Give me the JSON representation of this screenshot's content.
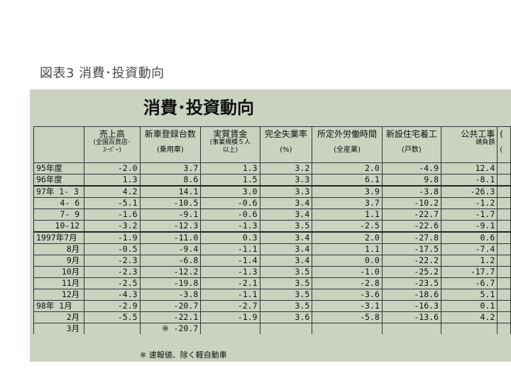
{
  "caption": "図表3 消費･投資動向",
  "title": "消費･投資動向",
  "headers": [
    {
      "name": "col-label",
      "main": "",
      "sub1": "",
      "sub2": ""
    },
    {
      "name": "col-sales",
      "main": "売上高",
      "sub1": "(全国百貨店･",
      "sub2": "ｽｰﾊﾟｰ)"
    },
    {
      "name": "col-newcar",
      "main": "新車登録台数",
      "sub1": "",
      "sub2": "(乗用車)"
    },
    {
      "name": "col-wage",
      "main": "実質賃金",
      "sub1": "(事業規模５人",
      "sub2": "以上)"
    },
    {
      "name": "col-unemp",
      "main": "完全失業率",
      "sub1": "",
      "sub2": "(%)"
    },
    {
      "name": "col-overtime",
      "main": "所定外労働時間",
      "sub1": "",
      "sub2": "(全産業)"
    },
    {
      "name": "col-housing",
      "main": "新設住宅着工",
      "sub1": "",
      "sub2": "(戸数)"
    },
    {
      "name": "col-public",
      "main": "公共工事",
      "sub1": "請負額",
      "sub2": ""
    },
    {
      "name": "col-extra",
      "main": "(",
      "sub1": "",
      "sub2": "("
    }
  ],
  "rows": [
    {
      "label": "95年度",
      "vals": [
        "-2.0",
        "3.7",
        "1.3",
        "3.2",
        "2.0",
        "-4.9",
        "12.4"
      ]
    },
    {
      "label": "96年度",
      "vals": [
        "1.3",
        "8.6",
        "1.5",
        "3.3",
        "6.1",
        "9.8",
        "-8.1"
      ]
    },
    {
      "label": "97年 1- 3",
      "sep": true,
      "vals": [
        "4.2",
        "14.1",
        "3.0",
        "3.3",
        "3.9",
        "-3.8",
        "-26.3"
      ]
    },
    {
      "label": "4- 6",
      "vals": [
        "-5.1",
        "-10.5",
        "-0.6",
        "3.4",
        "3.7",
        "-10.2",
        "-1.2"
      ]
    },
    {
      "label": "7- 9",
      "vals": [
        "-1.6",
        "-9.1",
        "-0.6",
        "3.4",
        "1.1",
        "-22.7",
        "-1.7"
      ]
    },
    {
      "label": "10-12",
      "vals": [
        "-3.2",
        "-12.3",
        "-1.3",
        "3.5",
        "-2.5",
        "-22.6",
        "-9.1"
      ]
    },
    {
      "label": "1997年7月",
      "sep": true,
      "vals": [
        "-1.9",
        "-11.0",
        "0.3",
        "3.4",
        "2.0",
        "-27.8",
        "0.6"
      ]
    },
    {
      "label": "8月",
      "vals": [
        "-0.5",
        "-9.4",
        "-1.1",
        "3.4",
        "1.1",
        "-17.5",
        "-7.4"
      ]
    },
    {
      "label": "9月",
      "vals": [
        "-2.3",
        "-6.8",
        "-1.4",
        "3.4",
        "0.0",
        "-22.2",
        "1.2"
      ]
    },
    {
      "label": "10月",
      "vals": [
        "-2.3",
        "-12.2",
        "-1.3",
        "3.5",
        "-1.0",
        "-25.2",
        "-17.7"
      ]
    },
    {
      "label": "11月",
      "vals": [
        "-2.5",
        "-19.8",
        "-2.1",
        "3.5",
        "-2.8",
        "-23.5",
        "-6.7"
      ]
    },
    {
      "label": "12月",
      "vals": [
        "-4.3",
        "-3.8",
        "-1.1",
        "3.5",
        "-3.6",
        "-18.6",
        "5.1"
      ]
    },
    {
      "label": "98年 1月",
      "vals": [
        "-2.9",
        "-20.7",
        "-2.7",
        "3.5",
        "-3.1",
        "-16.3",
        "0.1"
      ]
    },
    {
      "label": "2月",
      "vals": [
        "-5.5",
        "-22.1",
        "-1.9",
        "3.6",
        "-5.8",
        "-13.6",
        "4.2"
      ]
    },
    {
      "label": "3月",
      "last": true,
      "vals": [
        "",
        "※ -20.7",
        "",
        "",
        "",
        "",
        ""
      ]
    }
  ],
  "footnote": "※ 速報値、除く軽自動車"
}
